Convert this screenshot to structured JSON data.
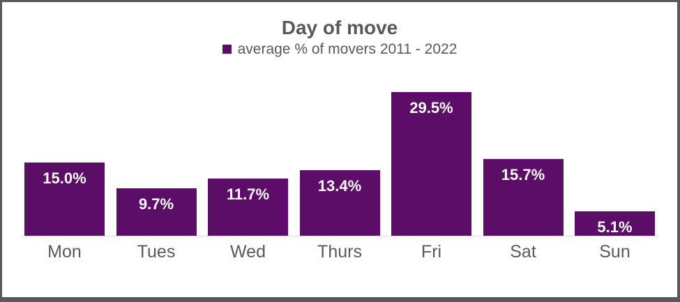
{
  "window": {
    "frame_color": "#595959",
    "background": "#FFFFFF"
  },
  "chart": {
    "title": "Day of move",
    "legend_label": "average % of movers 2011 - 2022",
    "accent_color": "#5C0D68",
    "text_color": "#595959",
    "data_label_color": "#FFFFFF",
    "axis_line_color": "#D9D9D9"
  },
  "chart_data": {
    "type": "bar",
    "title": "Day of move",
    "legend": [
      "average % of movers 2011 - 2022"
    ],
    "legend_position": "top",
    "categories": [
      "Mon",
      "Tues",
      "Wed",
      "Thurs",
      "Fri",
      "Sat",
      "Sun"
    ],
    "values": [
      15.0,
      9.7,
      11.7,
      13.4,
      29.5,
      15.7,
      5.1
    ],
    "data_labels": [
      "15.0%",
      "9.7%",
      "11.7%",
      "13.4%",
      "29.5%",
      "15.7%",
      "5.1%"
    ],
    "unit": "%",
    "bar_color": "#5C0D68",
    "xlabel": "",
    "ylabel": "",
    "ylim": [
      0,
      31
    ],
    "grid": false,
    "y_axis_visible": false
  }
}
